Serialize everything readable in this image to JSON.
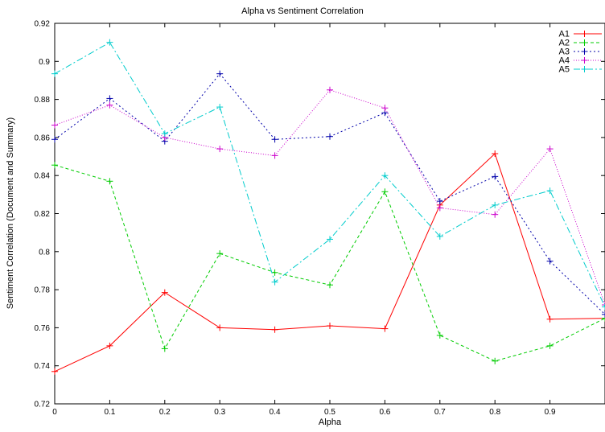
{
  "chart_data": {
    "type": "line",
    "title": "Alpha vs Sentiment Correlation",
    "xlabel": "Alpha",
    "ylabel": "Sentiment Correlation (Document and Summary)",
    "xlim": [
      0,
      1
    ],
    "ylim": [
      0.72,
      0.92
    ],
    "x": [
      0,
      0.1,
      0.2,
      0.3,
      0.4,
      0.5,
      0.6,
      0.7,
      0.8,
      0.9,
      1.0
    ],
    "x_ticks": [
      "0",
      "0.1",
      "0.2",
      "0.3",
      "0.4",
      "0.5",
      "0.6",
      "0.7",
      "0.8",
      "0.9"
    ],
    "y_ticks": [
      "0.72",
      "0.74",
      "0.76",
      "0.78",
      "0.8",
      "0.82",
      "0.84",
      "0.86",
      "0.88",
      "0.9",
      "0.92"
    ],
    "grid": false,
    "legend_position": "top-right",
    "series": [
      {
        "name": "A1",
        "color": "#ff0000",
        "dash": "none",
        "values": [
          0.737,
          0.7505,
          0.7785,
          0.76,
          0.759,
          0.761,
          0.7595,
          0.8245,
          0.8515,
          0.7645,
          0.765
        ]
      },
      {
        "name": "A2",
        "color": "#00cc00",
        "dash": "4,3",
        "values": [
          0.8455,
          0.837,
          0.749,
          0.799,
          0.789,
          0.7825,
          0.8315,
          0.756,
          0.7425,
          0.7505,
          0.765
        ]
      },
      {
        "name": "A3",
        "color": "#0000aa",
        "dash": "2,3",
        "values": [
          0.859,
          0.8805,
          0.858,
          0.8935,
          0.859,
          0.8605,
          0.873,
          0.8265,
          0.8395,
          0.795,
          0.767
        ]
      },
      {
        "name": "A4",
        "color": "#cc00cc",
        "dash": "1,2",
        "values": [
          0.8665,
          0.877,
          0.86,
          0.854,
          0.8505,
          0.885,
          0.8755,
          0.823,
          0.8195,
          0.854,
          0.772
        ]
      },
      {
        "name": "A5",
        "color": "#00cccc",
        "dash": "8,3,2,3",
        "values": [
          0.8935,
          0.91,
          0.862,
          0.876,
          0.784,
          0.8065,
          0.84,
          0.808,
          0.8245,
          0.832,
          0.771
        ]
      }
    ]
  }
}
